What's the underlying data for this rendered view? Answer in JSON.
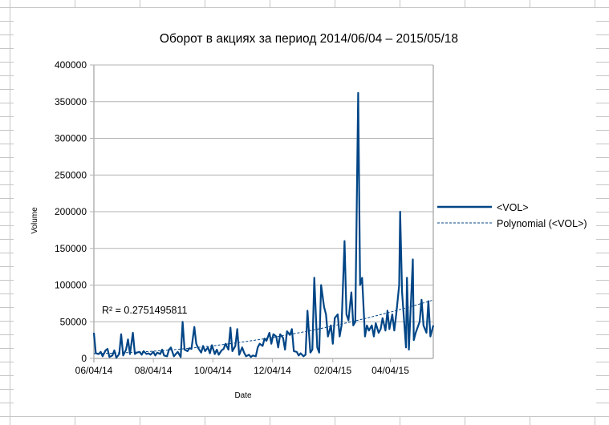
{
  "chart_data": {
    "type": "line",
    "title": "Оборот в акциях за период 2014/06/04 – 2015/05/18",
    "xlabel": "Date",
    "ylabel": "Volume",
    "ylim": [
      0,
      400000
    ],
    "xlim": [
      "2014-06-04",
      "2015-05-18"
    ],
    "y_ticks": [
      "0",
      "50000",
      "100000",
      "150000",
      "200000",
      "250000",
      "300000",
      "350000",
      "400000"
    ],
    "x_ticks": [
      {
        "date": "2014-06-04",
        "label": "06/04/14"
      },
      {
        "date": "2014-08-04",
        "label": "08/04/14"
      },
      {
        "date": "2014-10-04",
        "label": "10/04/14"
      },
      {
        "date": "2014-12-04",
        "label": "12/04/14"
      },
      {
        "date": "2015-02-04",
        "label": "02/04/15"
      },
      {
        "date": "2015-04-04",
        "label": "04/04/15"
      }
    ],
    "grid": true,
    "legend_position": "right",
    "series": [
      {
        "name": "<VOL>",
        "color": "#004586",
        "points": [
          [
            "2014-06-04",
            35000
          ],
          [
            "2014-06-06",
            7000
          ],
          [
            "2014-06-09",
            6000
          ],
          [
            "2014-06-11",
            9000
          ],
          [
            "2014-06-13",
            3000
          ],
          [
            "2014-06-16",
            11000
          ],
          [
            "2014-06-18",
            13000
          ],
          [
            "2014-06-20",
            2000
          ],
          [
            "2014-06-23",
            4000
          ],
          [
            "2014-06-25",
            11000
          ],
          [
            "2014-06-27",
            1000
          ],
          [
            "2014-06-30",
            6000
          ],
          [
            "2014-07-02",
            33000
          ],
          [
            "2014-07-04",
            4000
          ],
          [
            "2014-07-07",
            12000
          ],
          [
            "2014-07-09",
            26000
          ],
          [
            "2014-07-11",
            6000
          ],
          [
            "2014-07-14",
            35000
          ],
          [
            "2014-07-16",
            6000
          ],
          [
            "2014-07-18",
            8000
          ],
          [
            "2014-07-21",
            9000
          ],
          [
            "2014-07-23",
            5000
          ],
          [
            "2014-07-25",
            10000
          ],
          [
            "2014-07-28",
            6000
          ],
          [
            "2014-07-30",
            7000
          ],
          [
            "2014-08-01",
            5000
          ],
          [
            "2014-08-04",
            9000
          ],
          [
            "2014-08-06",
            4000
          ],
          [
            "2014-08-08",
            8000
          ],
          [
            "2014-08-11",
            6000
          ],
          [
            "2014-08-13",
            12000
          ],
          [
            "2014-08-15",
            4000
          ],
          [
            "2014-08-18",
            3000
          ],
          [
            "2014-08-20",
            12000
          ],
          [
            "2014-08-22",
            15000
          ],
          [
            "2014-08-25",
            3000
          ],
          [
            "2014-08-27",
            6000
          ],
          [
            "2014-08-29",
            9000
          ],
          [
            "2014-09-01",
            2000
          ],
          [
            "2014-09-03",
            50000
          ],
          [
            "2014-09-05",
            12000
          ],
          [
            "2014-09-08",
            10000
          ],
          [
            "2014-09-10",
            14000
          ],
          [
            "2014-09-12",
            13000
          ],
          [
            "2014-09-15",
            43000
          ],
          [
            "2014-09-17",
            20000
          ],
          [
            "2014-09-19",
            14000
          ],
          [
            "2014-09-22",
            8000
          ],
          [
            "2014-09-24",
            17000
          ],
          [
            "2014-09-26",
            10000
          ],
          [
            "2014-09-29",
            15000
          ],
          [
            "2014-10-01",
            7000
          ],
          [
            "2014-10-03",
            18000
          ],
          [
            "2014-10-06",
            6000
          ],
          [
            "2014-10-08",
            12000
          ],
          [
            "2014-10-10",
            5000
          ],
          [
            "2014-10-13",
            11000
          ],
          [
            "2014-10-15",
            13000
          ],
          [
            "2014-10-17",
            20000
          ],
          [
            "2014-10-20",
            12000
          ],
          [
            "2014-10-22",
            42000
          ],
          [
            "2014-10-24",
            10000
          ],
          [
            "2014-10-27",
            17000
          ],
          [
            "2014-10-29",
            40000
          ],
          [
            "2014-10-31",
            5000
          ],
          [
            "2014-11-03",
            15000
          ],
          [
            "2014-11-05",
            8000
          ],
          [
            "2014-11-07",
            3000
          ],
          [
            "2014-11-10",
            5000
          ],
          [
            "2014-11-12",
            2000
          ],
          [
            "2014-11-14",
            4000
          ],
          [
            "2014-11-17",
            3000
          ],
          [
            "2014-11-19",
            15000
          ],
          [
            "2014-11-21",
            20000
          ],
          [
            "2014-11-24",
            17000
          ],
          [
            "2014-11-26",
            27000
          ],
          [
            "2014-11-28",
            24000
          ],
          [
            "2014-12-01",
            35000
          ],
          [
            "2014-12-03",
            20000
          ],
          [
            "2014-12-05",
            33000
          ],
          [
            "2014-12-08",
            30000
          ],
          [
            "2014-12-10",
            15000
          ],
          [
            "2014-12-12",
            33000
          ],
          [
            "2014-12-15",
            28000
          ],
          [
            "2014-12-17",
            12000
          ],
          [
            "2014-12-19",
            37000
          ],
          [
            "2014-12-22",
            32000
          ],
          [
            "2014-12-24",
            40000
          ],
          [
            "2014-12-26",
            10000
          ],
          [
            "2014-12-29",
            9000
          ],
          [
            "2014-12-31",
            4000
          ],
          [
            "2015-01-02",
            7000
          ],
          [
            "2015-01-05",
            3000
          ],
          [
            "2015-01-07",
            5000
          ],
          [
            "2015-01-09",
            65000
          ],
          [
            "2015-01-12",
            8000
          ],
          [
            "2015-01-14",
            12000
          ],
          [
            "2015-01-16",
            110000
          ],
          [
            "2015-01-19",
            15000
          ],
          [
            "2015-01-21",
            8000
          ],
          [
            "2015-01-23",
            100000
          ],
          [
            "2015-01-26",
            70000
          ],
          [
            "2015-01-28",
            60000
          ],
          [
            "2015-01-30",
            30000
          ],
          [
            "2015-02-02",
            45000
          ],
          [
            "2015-02-04",
            20000
          ],
          [
            "2015-02-06",
            55000
          ],
          [
            "2015-02-09",
            60000
          ],
          [
            "2015-02-11",
            30000
          ],
          [
            "2015-02-13",
            45000
          ],
          [
            "2015-02-16",
            160000
          ],
          [
            "2015-02-18",
            60000
          ],
          [
            "2015-02-20",
            52000
          ],
          [
            "2015-02-23",
            90000
          ],
          [
            "2015-02-25",
            45000
          ],
          [
            "2015-02-27",
            50000
          ],
          [
            "2015-03-02",
            362000
          ],
          [
            "2015-03-04",
            100000
          ],
          [
            "2015-03-06",
            110000
          ],
          [
            "2015-03-09",
            30000
          ],
          [
            "2015-03-11",
            45000
          ],
          [
            "2015-03-13",
            38000
          ],
          [
            "2015-03-16",
            45000
          ],
          [
            "2015-03-18",
            30000
          ],
          [
            "2015-03-20",
            48000
          ],
          [
            "2015-03-23",
            35000
          ],
          [
            "2015-03-25",
            40000
          ],
          [
            "2015-03-27",
            55000
          ],
          [
            "2015-03-30",
            38000
          ],
          [
            "2015-04-01",
            65000
          ],
          [
            "2015-04-03",
            40000
          ],
          [
            "2015-04-06",
            60000
          ],
          [
            "2015-04-08",
            38000
          ],
          [
            "2015-04-10",
            60000
          ],
          [
            "2015-04-13",
            100000
          ],
          [
            "2015-04-14",
            200000
          ],
          [
            "2015-04-16",
            90000
          ],
          [
            "2015-04-20",
            15000
          ],
          [
            "2015-04-21",
            110000
          ],
          [
            "2015-04-23",
            12000
          ],
          [
            "2015-04-27",
            135000
          ],
          [
            "2015-04-28",
            25000
          ],
          [
            "2015-04-30",
            35000
          ],
          [
            "2015-05-04",
            50000
          ],
          [
            "2015-05-06",
            80000
          ],
          [
            "2015-05-08",
            45000
          ],
          [
            "2015-05-11",
            35000
          ],
          [
            "2015-05-13",
            78000
          ],
          [
            "2015-05-15",
            30000
          ],
          [
            "2015-05-18",
            45000
          ]
        ]
      }
    ],
    "trendline": {
      "name": "Polynomial (<VOL>)",
      "type": "polynomial",
      "degree": 2,
      "r_squared_label": "R² = 0.2751495811",
      "color": "#004586",
      "style": "dashed"
    }
  }
}
